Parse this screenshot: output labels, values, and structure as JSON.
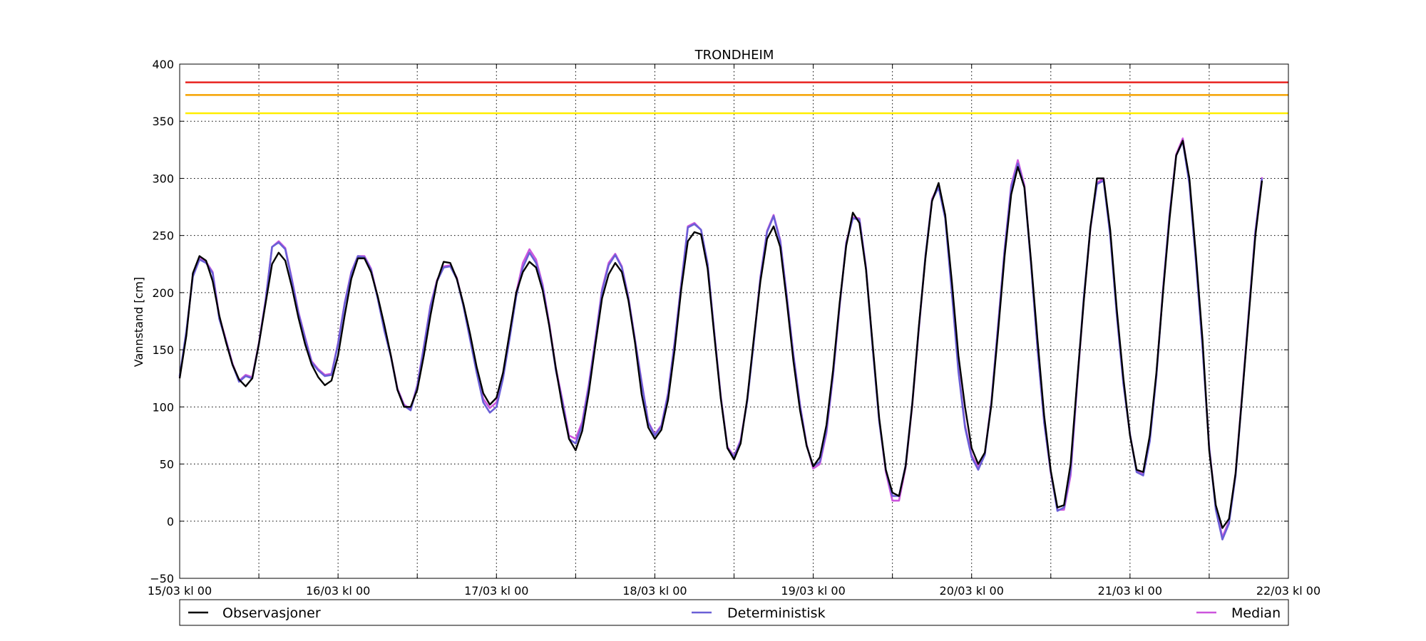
{
  "chart_data": {
    "type": "line",
    "title": "TRONDHEIM",
    "ylabel": "Vannstand [cm]",
    "xlabel": "",
    "ylim": [
      -50,
      400
    ],
    "xlim_hours": [
      0,
      168
    ],
    "yticks": [
      -50,
      0,
      50,
      100,
      150,
      200,
      250,
      300,
      350,
      400
    ],
    "xticks": [
      {
        "hour": 0,
        "label": "15/03 kl 00"
      },
      {
        "hour": 24,
        "label": "16/03 kl 00"
      },
      {
        "hour": 48,
        "label": "17/03 kl 00"
      },
      {
        "hour": 72,
        "label": "18/03 kl 00"
      },
      {
        "hour": 96,
        "label": "19/03 kl 00"
      },
      {
        "hour": 120,
        "label": "20/03 kl 00"
      },
      {
        "hour": 144,
        "label": "21/03 kl 00"
      },
      {
        "hour": 168,
        "label": "22/03 kl 00"
      }
    ],
    "minor_xticks": [
      12,
      36,
      60,
      84,
      108,
      132,
      156
    ],
    "grid": true,
    "legend_position": "bottom",
    "thresholds": [
      {
        "value": 384,
        "color": "#e8231f"
      },
      {
        "value": 373,
        "color": "#f5a300"
      },
      {
        "value": 357,
        "color": "#ffee00"
      }
    ],
    "series": [
      {
        "name": "Observasjoner",
        "color": "#000000",
        "values": [
          125,
          162,
          217,
          232,
          228,
          210,
          180,
          157,
          137,
          124,
          118,
          125,
          155,
          190,
          225,
          235,
          228,
          205,
          178,
          155,
          137,
          126,
          119,
          123,
          145,
          180,
          212,
          230,
          230,
          218,
          197,
          172,
          145,
          115,
          100,
          100,
          115,
          145,
          180,
          210,
          227,
          226,
          212,
          190,
          164,
          135,
          112,
          102,
          108,
          130,
          165,
          200,
          218,
          227,
          222,
          202,
          171,
          134,
          100,
          72,
          62,
          79,
          113,
          155,
          195,
          216,
          226,
          218,
          193,
          156,
          111,
          82,
          72,
          80,
          106,
          150,
          203,
          245,
          253,
          251,
          221,
          163,
          107,
          64,
          54,
          68,
          107,
          160,
          210,
          247,
          258,
          240,
          192,
          140,
          97,
          66,
          48,
          56,
          84,
          132,
          191,
          241,
          270,
          261,
          220,
          155,
          90,
          45,
          25,
          22,
          48,
          102,
          170,
          230,
          280,
          296,
          268,
          210,
          145,
          100,
          64,
          50,
          60,
          102,
          165,
          232,
          286,
          310,
          292,
          228,
          158,
          92,
          44,
          12,
          14,
          50,
          123,
          193,
          257,
          300,
          300,
          255,
          185,
          125,
          75,
          45,
          43,
          75,
          130,
          200,
          265,
          320,
          333,
          300,
          232,
          158,
          62,
          14,
          -6,
          2,
          42,
          110,
          180,
          250,
          298
        ]
      },
      {
        "name": "Deterministisk",
        "color": "#6a5fd6",
        "values": [
          127,
          166,
          214,
          229,
          226,
          217,
          177,
          158,
          137,
          122,
          127,
          125,
          155,
          192,
          240,
          244,
          238,
          211,
          182,
          160,
          139,
          132,
          127,
          128,
          155,
          190,
          217,
          232,
          231,
          220,
          195,
          167,
          144,
          115,
          101,
          97,
          118,
          152,
          188,
          210,
          222,
          223,
          212,
          188,
          159,
          130,
          104,
          95,
          100,
          125,
          160,
          197,
          222,
          235,
          226,
          205,
          171,
          132,
          104,
          72,
          68,
          84,
          118,
          158,
          201,
          224,
          233,
          222,
          195,
          158,
          121,
          86,
          75,
          83,
          111,
          156,
          207,
          257,
          260,
          255,
          225,
          165,
          108,
          64,
          56,
          70,
          105,
          157,
          213,
          253,
          267,
          245,
          196,
          145,
          101,
          66,
          48,
          52,
          79,
          128,
          189,
          243,
          265,
          264,
          221,
          152,
          87,
          45,
          22,
          22,
          49,
          103,
          169,
          232,
          281,
          292,
          265,
          200,
          131,
          82,
          56,
          45,
          58,
          104,
          170,
          237,
          292,
          313,
          292,
          225,
          150,
          86,
          43,
          9,
          12,
          44,
          122,
          196,
          257,
          295,
          298,
          250,
          180,
          120,
          76,
          43,
          40,
          70,
          127,
          202,
          268,
          320,
          332,
          295,
          226,
          151,
          64,
          10,
          -16,
          -2,
          40,
          110,
          182,
          253,
          300
        ]
      },
      {
        "name": "Median",
        "color": "#cc55dd",
        "values": [
          126,
          164,
          216,
          230,
          227,
          218,
          179,
          159,
          138,
          123,
          128,
          126,
          156,
          193,
          240,
          245,
          239,
          212,
          183,
          161,
          140,
          133,
          128,
          129,
          156,
          191,
          218,
          232,
          232,
          221,
          196,
          168,
          145,
          116,
          102,
          98,
          119,
          153,
          189,
          211,
          223,
          224,
          213,
          189,
          160,
          131,
          107,
          99,
          104,
          128,
          164,
          200,
          226,
          238,
          229,
          207,
          173,
          134,
          106,
          75,
          72,
          87,
          120,
          160,
          203,
          226,
          234,
          223,
          196,
          159,
          122,
          87,
          76,
          84,
          112,
          157,
          208,
          258,
          261,
          255,
          225,
          166,
          109,
          65,
          57,
          71,
          106,
          158,
          214,
          254,
          268,
          246,
          197,
          146,
          102,
          67,
          46,
          50,
          77,
          127,
          188,
          244,
          266,
          265,
          222,
          153,
          88,
          43,
          18,
          18,
          47,
          101,
          168,
          231,
          282,
          294,
          267,
          202,
          133,
          84,
          58,
          47,
          59,
          105,
          171,
          238,
          294,
          316,
          294,
          226,
          150,
          86,
          42,
          10,
          10,
          40,
          120,
          194,
          256,
          296,
          300,
          252,
          181,
          121,
          76,
          44,
          41,
          72,
          128,
          203,
          269,
          321,
          335,
          297,
          228,
          152,
          65,
          12,
          -14,
          0,
          42,
          112,
          183,
          254,
          301
        ]
      }
    ]
  }
}
